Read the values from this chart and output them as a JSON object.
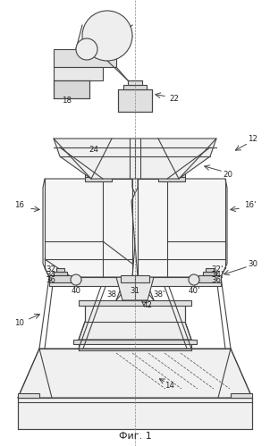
{
  "title": "Фиг. 1",
  "bg_color": "#ffffff",
  "line_color": "#444444",
  "figsize": [
    3.02,
    4.99
  ],
  "dpi": 100
}
